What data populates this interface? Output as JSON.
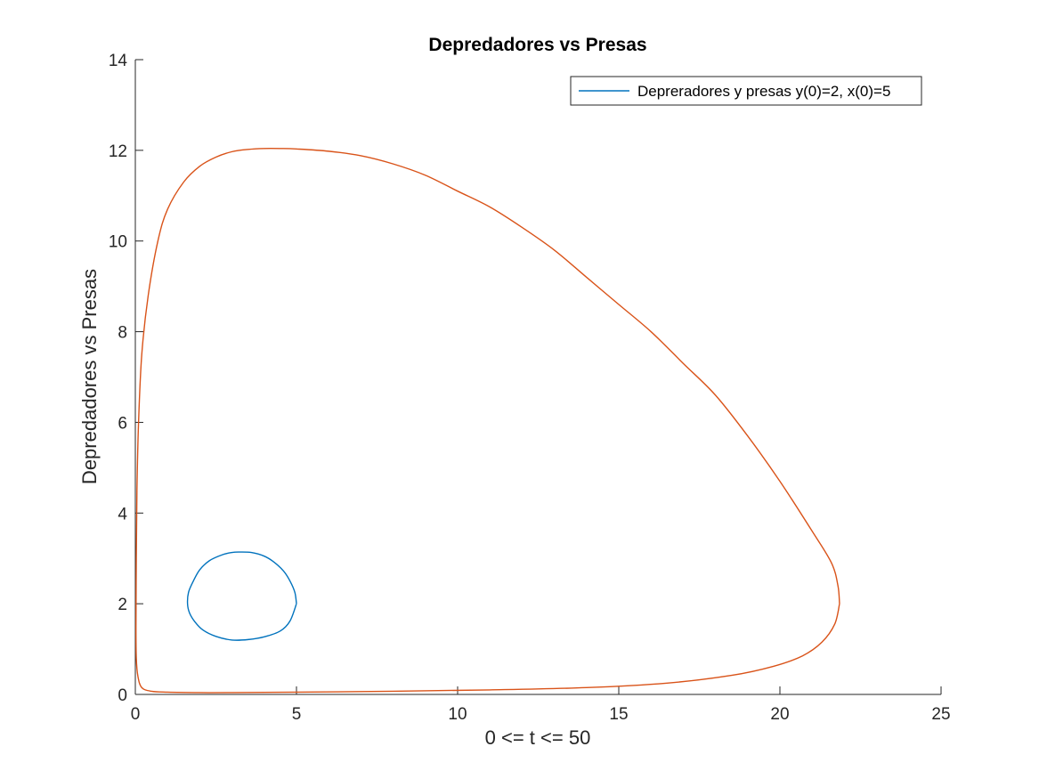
{
  "chart_data": {
    "type": "line",
    "title": "Depredadores vs Presas",
    "xlabel": "0 <= t <= 50",
    "ylabel": "Depredadores vs Presas",
    "xlim": [
      0,
      25
    ],
    "ylim": [
      0,
      14
    ],
    "xticks": [
      0,
      5,
      10,
      15,
      20,
      25
    ],
    "yticks": [
      0,
      2,
      4,
      6,
      8,
      10,
      12,
      14
    ],
    "grid": false,
    "legend": {
      "placement": "top-right"
    },
    "colors": {
      "series_0": "#0072BD",
      "series_1": "#D95319",
      "axis": "#262626"
    },
    "series": [
      {
        "name": "Depreradores y presas y(0)=2, x(0)=5",
        "color": "#0072BD",
        "x": [
          5.0,
          4.95,
          4.8,
          4.6,
          4.3,
          4.0,
          3.6,
          3.2,
          3.0,
          2.7,
          2.3,
          2.0,
          1.8,
          1.65,
          1.62,
          1.68,
          1.85,
          2.1,
          2.5,
          3.0,
          3.5,
          4.0,
          4.5,
          4.8,
          5.0
        ],
        "y": [
          2.0,
          2.25,
          2.5,
          2.72,
          2.92,
          3.05,
          3.13,
          3.14,
          3.13,
          3.08,
          2.95,
          2.75,
          2.5,
          2.25,
          2.0,
          1.8,
          1.6,
          1.42,
          1.28,
          1.2,
          1.21,
          1.27,
          1.4,
          1.62,
          2.0
        ]
      },
      {
        "color": "#D95319",
        "x": [
          21.85,
          21.8,
          21.6,
          21.0,
          20.0,
          19.0,
          18.0,
          17.0,
          16.0,
          15.0,
          14.0,
          13.0,
          12.0,
          11.0,
          10.0,
          9.0,
          8.0,
          7.0,
          6.0,
          5.0,
          4.5,
          4.0,
          3.5,
          3.0,
          2.5,
          2.0,
          1.5,
          1.0,
          0.7,
          0.4,
          0.2,
          0.1,
          0.05,
          0.03,
          0.02,
          0.03,
          0.08,
          0.2,
          0.5,
          1.0,
          2.0,
          3.0,
          5.0,
          8.0,
          11.0,
          14.0,
          16.5,
          18.5,
          19.8,
          20.7,
          21.3,
          21.7,
          21.85
        ],
        "y": [
          2.0,
          2.4,
          2.9,
          3.6,
          4.7,
          5.7,
          6.6,
          7.3,
          8.0,
          8.6,
          9.2,
          9.8,
          10.3,
          10.75,
          11.1,
          11.45,
          11.7,
          11.88,
          11.98,
          12.03,
          12.04,
          12.04,
          12.02,
          11.97,
          11.85,
          11.65,
          11.3,
          10.7,
          10.0,
          8.8,
          7.5,
          6.0,
          4.5,
          3.0,
          1.5,
          0.8,
          0.4,
          0.15,
          0.07,
          0.05,
          0.04,
          0.04,
          0.05,
          0.07,
          0.1,
          0.15,
          0.25,
          0.42,
          0.62,
          0.85,
          1.15,
          1.55,
          2.0
        ]
      }
    ]
  }
}
